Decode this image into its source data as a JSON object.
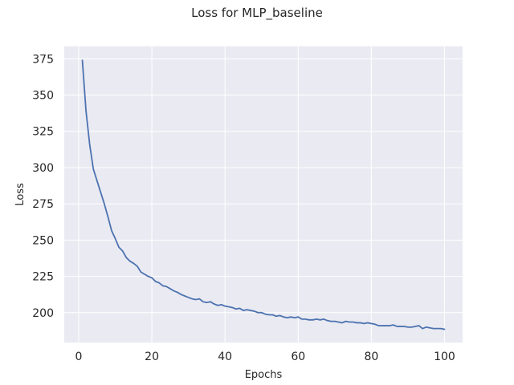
{
  "chart_data": {
    "type": "line",
    "title": "Loss for MLP_baseline",
    "xlabel": "Epochs",
    "ylabel": "Loss",
    "xlim": [
      -3.95,
      104.95
    ],
    "ylim": [
      179.3,
      383.7
    ],
    "xticks": [
      0,
      20,
      40,
      60,
      80,
      100
    ],
    "yticks": [
      200,
      225,
      250,
      275,
      300,
      325,
      350,
      375
    ],
    "grid": true,
    "legend": "none",
    "style": {
      "background": "#eaeaf2",
      "grid_color": "#ffffff",
      "line_color": "#4c72b0"
    },
    "series": [
      {
        "x": [
          1,
          2,
          3,
          4,
          5,
          6,
          7,
          8,
          9,
          10,
          11,
          12,
          13,
          14,
          15,
          16,
          17,
          18,
          19,
          20,
          21,
          22,
          23,
          24,
          25,
          26,
          27,
          28,
          29,
          30,
          31,
          32,
          33,
          34,
          35,
          36,
          37,
          38,
          39,
          40,
          41,
          42,
          43,
          44,
          45,
          46,
          47,
          48,
          49,
          50,
          51,
          52,
          53,
          54,
          55,
          56,
          57,
          58,
          59,
          60,
          61,
          62,
          63,
          64,
          65,
          66,
          67,
          68,
          69,
          70,
          71,
          72,
          73,
          74,
          75,
          76,
          77,
          78,
          79,
          80,
          81,
          82,
          83,
          84,
          85,
          86,
          87,
          88,
          89,
          90,
          91,
          92,
          93,
          94,
          95,
          96,
          97,
          98,
          99,
          100
        ],
        "values": [
          374.0,
          339.0,
          316.0,
          299.0,
          291.0,
          283.0,
          275.0,
          266.0,
          256.5,
          251.0,
          245.0,
          242.5,
          238.0,
          235.5,
          234.0,
          232.0,
          228.0,
          226.5,
          225.0,
          224.0,
          221.5,
          220.5,
          218.5,
          218.0,
          216.5,
          215.0,
          214.0,
          212.5,
          211.5,
          210.5,
          209.5,
          209.0,
          209.5,
          207.5,
          207.0,
          207.5,
          206.0,
          205.0,
          205.5,
          204.5,
          204.0,
          203.5,
          202.5,
          203.0,
          201.5,
          202.0,
          201.5,
          201.0,
          200.0,
          200.0,
          199.0,
          198.5,
          198.5,
          197.5,
          198.0,
          197.0,
          196.5,
          197.0,
          196.5,
          197.0,
          195.5,
          195.5,
          195.0,
          195.0,
          195.5,
          195.0,
          195.5,
          194.5,
          194.0,
          194.0,
          193.5,
          193.0,
          194.0,
          193.5,
          193.5,
          193.0,
          193.0,
          192.5,
          193.0,
          192.5,
          192.0,
          191.0,
          191.0,
          191.0,
          191.0,
          191.5,
          190.5,
          190.5,
          190.5,
          190.0,
          190.0,
          190.5,
          191.0,
          189.0,
          190.0,
          189.5,
          189.0,
          189.0,
          189.0,
          188.5
        ]
      }
    ]
  }
}
